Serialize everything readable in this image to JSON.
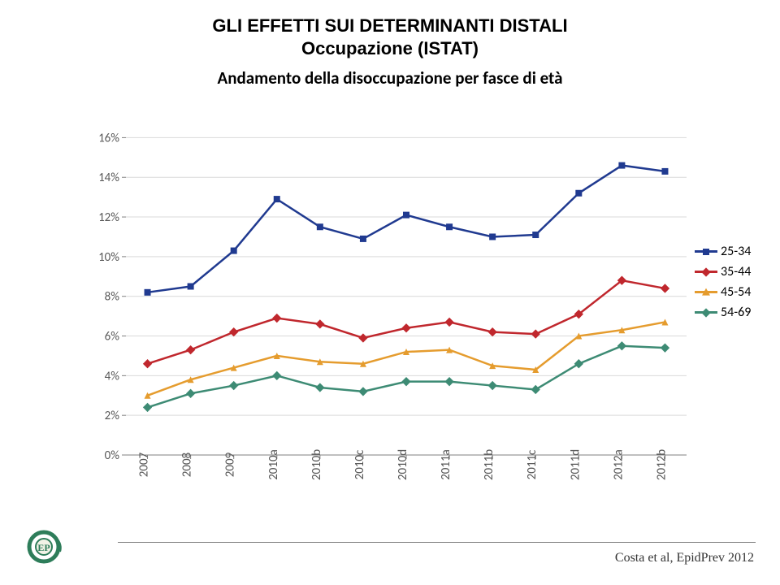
{
  "header": {
    "title_line1": "GLI EFFETTI SUI DETERMINANTI DISTALI",
    "title_line2": "Occupazione (ISTAT)"
  },
  "chart": {
    "type": "line",
    "title": "Andamento della disoccupazione per fasce di età",
    "title_fontsize": 21,
    "background_color": "#ffffff",
    "grid_color": "#d9d9d9",
    "axis_color": "#808080",
    "label_color": "#595959",
    "label_fontsize": 15,
    "line_width": 2.5,
    "marker_size": 8,
    "ylim": [
      0,
      17
    ],
    "ytick_step": 2,
    "ytick_suffix": "%",
    "yticks": [
      "0%",
      "2%",
      "4%",
      "6%",
      "8%",
      "10%",
      "12%",
      "14%",
      "16%"
    ],
    "categories": [
      "2007",
      "2008",
      "2009",
      "2010a",
      "2010b",
      "2010c",
      "2010d",
      "2011a",
      "2011b",
      "2011c",
      "2011d",
      "2012a",
      "2012b"
    ],
    "series": [
      {
        "name": "25-34",
        "color": "#203a90",
        "marker": "square",
        "values": [
          8.2,
          8.5,
          10.3,
          12.9,
          11.5,
          10.9,
          12.1,
          11.5,
          11.0,
          11.1,
          13.2,
          14.6,
          14.3
        ]
      },
      {
        "name": "35-44",
        "color": "#c0272d",
        "marker": "diamond",
        "values": [
          4.6,
          5.3,
          6.2,
          6.9,
          6.6,
          5.9,
          6.4,
          6.7,
          6.2,
          6.1,
          7.1,
          8.8,
          8.4
        ]
      },
      {
        "name": "45-54",
        "color": "#e59c2e",
        "marker": "triangle",
        "values": [
          3.0,
          3.8,
          4.4,
          5.0,
          4.7,
          4.6,
          5.2,
          5.3,
          4.5,
          4.3,
          6.0,
          6.3,
          6.7
        ]
      },
      {
        "name": "54-69",
        "color": "#3d8b74",
        "marker": "diamond",
        "values": [
          2.4,
          3.1,
          3.5,
          4.0,
          3.4,
          3.2,
          3.7,
          3.7,
          3.5,
          3.3,
          4.6,
          5.5,
          5.4
        ]
      }
    ]
  },
  "legend": {
    "position": "right",
    "fontsize": 16,
    "items": [
      "25-34",
      "35-44",
      "45-54",
      "54-69"
    ]
  },
  "footer": {
    "citation": "Costa et al, EpidPrev 2012"
  }
}
